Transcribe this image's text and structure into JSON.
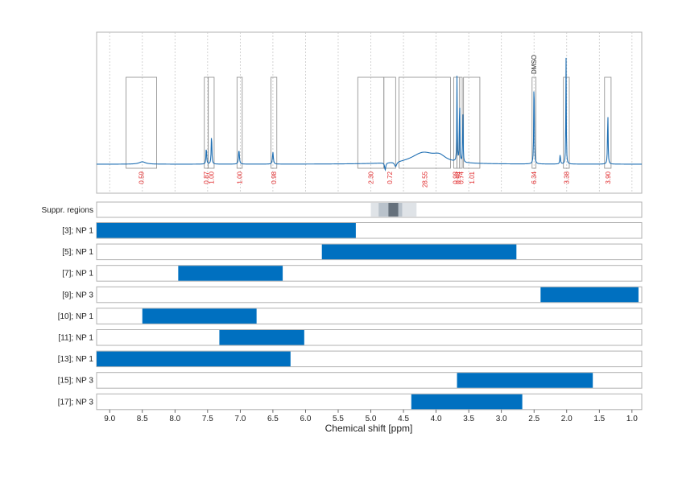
{
  "chart_data": {
    "type": "spectrum",
    "xlabel": "Chemical shift [ppm]",
    "xlim": [
      9.2,
      0.85
    ],
    "x_ticks": [
      9.0,
      8.5,
      8.0,
      7.5,
      7.0,
      6.5,
      6.0,
      5.5,
      5.0,
      4.5,
      4.0,
      3.5,
      3.0,
      2.5,
      2.0,
      1.5,
      1.0
    ],
    "x_tick_labels": [
      "9.0",
      "8.5",
      "8.0",
      "7.5",
      "7.0",
      "6.5",
      "6.0",
      "5.5",
      "5.0",
      "4.5",
      "4.0",
      "3.5",
      "3.0",
      "2.5",
      "2.0",
      "1.5",
      "1.0"
    ],
    "spectrum": {
      "color": "#1f6fb3",
      "peaks": [
        {
          "ppm": 8.5,
          "height": 0.02,
          "width": 0.06
        },
        {
          "ppm": 7.52,
          "height": 0.14,
          "width": 0.006
        },
        {
          "ppm": 7.44,
          "height": 0.25,
          "width": 0.006
        },
        {
          "ppm": 7.02,
          "height": 0.12,
          "width": 0.008
        },
        {
          "ppm": 6.5,
          "height": 0.1,
          "width": 0.008
        },
        {
          "ppm": 4.78,
          "height": -0.06,
          "width": 0.01
        },
        {
          "ppm": 4.62,
          "height": -0.04,
          "width": 0.02
        },
        {
          "ppm": 4.2,
          "height": 0.09,
          "width": 0.22
        },
        {
          "ppm": 3.95,
          "height": 0.05,
          "width": 0.12
        },
        {
          "ppm": 3.68,
          "height": 0.72,
          "width": 0.004
        },
        {
          "ppm": 3.64,
          "height": 0.62,
          "width": 0.004
        },
        {
          "ppm": 3.59,
          "height": 0.48,
          "width": 0.004
        },
        {
          "ppm": 2.5,
          "height": 0.78,
          "width": 0.005
        },
        {
          "ppm": 2.1,
          "height": 0.08,
          "width": 0.006
        },
        {
          "ppm": 2.01,
          "height": 0.9,
          "width": 0.004
        },
        {
          "ppm": 1.37,
          "height": 0.45,
          "width": 0.005
        }
      ]
    },
    "integrals": [
      {
        "ppm_range": [
          8.75,
          8.28
        ],
        "label": "0.59"
      },
      {
        "ppm_range": [
          7.55,
          7.49
        ],
        "label": "0.87"
      },
      {
        "ppm_range": [
          7.49,
          7.4
        ],
        "label": "1.00"
      },
      {
        "ppm_range": [
          7.05,
          6.97
        ],
        "label": "1.00"
      },
      {
        "ppm_range": [
          6.53,
          6.44
        ],
        "label": "0.98"
      },
      {
        "ppm_range": [
          5.2,
          4.8
        ],
        "label": "2.30"
      },
      {
        "ppm_range": [
          4.8,
          4.62
        ],
        "label": "0.72"
      },
      {
        "ppm_range": [
          4.57,
          3.78
        ],
        "label": "28.55"
      },
      {
        "ppm_range": [
          3.73,
          3.68
        ],
        "label": "0.98"
      },
      {
        "ppm_range": [
          3.68,
          3.64
        ],
        "label": "0.94"
      },
      {
        "ppm_range": [
          3.64,
          3.6
        ],
        "label": "0.74"
      },
      {
        "ppm_range": [
          3.58,
          3.33
        ],
        "label": "1.01"
      },
      {
        "ppm_range": [
          2.53,
          2.47
        ],
        "label": "6.34"
      },
      {
        "ppm_range": [
          2.05,
          1.96
        ],
        "label": "3.38"
      },
      {
        "ppm_range": [
          1.42,
          1.32
        ],
        "label": "3.90"
      }
    ],
    "annotations": [
      {
        "ppm": 2.5,
        "text": "DMSO"
      }
    ],
    "suppressed_regions": {
      "label": "Suppr. regions",
      "bands": [
        {
          "range": [
            5.0,
            4.3
          ],
          "shade": "#dfe3e7"
        },
        {
          "range": [
            4.88,
            4.52
          ],
          "shade": "#b9c2cb"
        },
        {
          "range": [
            4.73,
            4.58
          ],
          "shade": "#66717c"
        }
      ]
    },
    "ranges": [
      {
        "label": "[3]; NP 1",
        "range": [
          9.2,
          5.23
        ]
      },
      {
        "label": "[5]; NP 1",
        "range": [
          5.75,
          2.77
        ]
      },
      {
        "label": "[7]; NP 1",
        "range": [
          7.95,
          6.35
        ]
      },
      {
        "label": "[9]; NP 3",
        "range": [
          2.4,
          0.9
        ]
      },
      {
        "label": "[10]; NP 1",
        "range": [
          8.5,
          6.75
        ]
      },
      {
        "label": "[11]; NP 1",
        "range": [
          7.32,
          6.02
        ]
      },
      {
        "label": "[13]; NP 1",
        "range": [
          9.2,
          6.23
        ]
      },
      {
        "label": "[15]; NP 3",
        "range": [
          3.68,
          1.6
        ]
      },
      {
        "label": "[17]; NP 3",
        "range": [
          4.38,
          2.68
        ]
      }
    ],
    "colors": {
      "bar": "#0070c0",
      "integral_text": "#e0292b",
      "frame": "#b0b0b0",
      "grid": "#c8c8c8"
    }
  }
}
